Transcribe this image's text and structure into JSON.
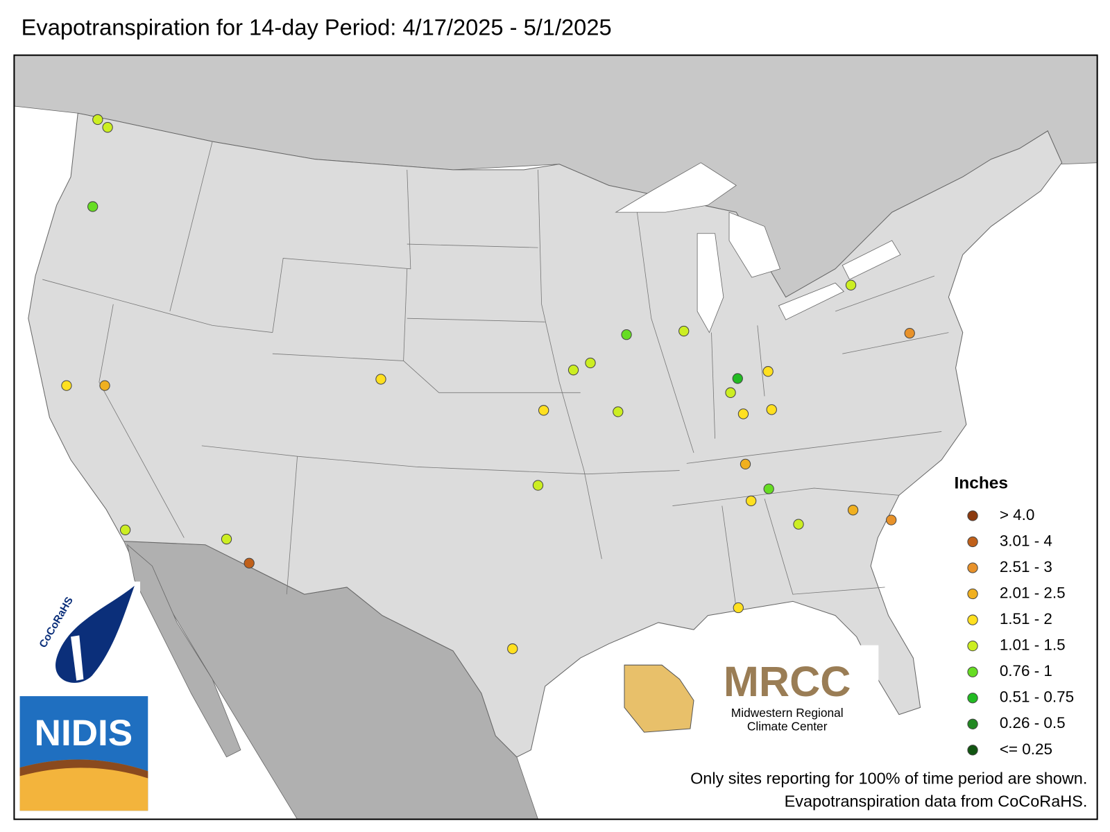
{
  "title": "Evapotranspiration for 14-day Period: 4/17/2025 - 5/1/2025",
  "legend": {
    "title": "Inches",
    "items": [
      {
        "label": "> 4.0",
        "color": "#8b3a0f"
      },
      {
        "label": "3.01 - 4",
        "color": "#c0601a"
      },
      {
        "label": "2.51 - 3",
        "color": "#e8922a"
      },
      {
        "label": "2.01 - 2.5",
        "color": "#f0b020"
      },
      {
        "label": "1.51 - 2",
        "color": "#ffe020"
      },
      {
        "label": "1.01 - 1.5",
        "color": "#ccee22"
      },
      {
        "label": "0.76 - 1",
        "color": "#66dd22"
      },
      {
        "label": "0.51 - 0.75",
        "color": "#22bb22"
      },
      {
        "label": "0.26 - 0.5",
        "color": "#228822"
      },
      {
        "label": "<= 0.25",
        "color": "#115511"
      }
    ]
  },
  "notes": [
    "Only sites reporting for 100% of time period are shown.",
    "Evapotranspiration data from CoCoRaHS."
  ],
  "logos": {
    "cocorahs": "CoCoRaHS",
    "nidis": "NIDIS",
    "mrcc": "MRCC",
    "mrcc_name": [
      "Midwestern Regional",
      "Climate Center"
    ]
  },
  "sites": [
    5,
    5,
    6,
    4,
    3,
    5,
    5,
    1,
    4,
    4,
    5,
    4,
    5,
    5,
    6,
    5,
    5,
    7,
    5,
    4,
    4,
    4,
    3,
    6,
    4,
    5,
    4,
    5,
    2,
    3,
    2
  ]
}
